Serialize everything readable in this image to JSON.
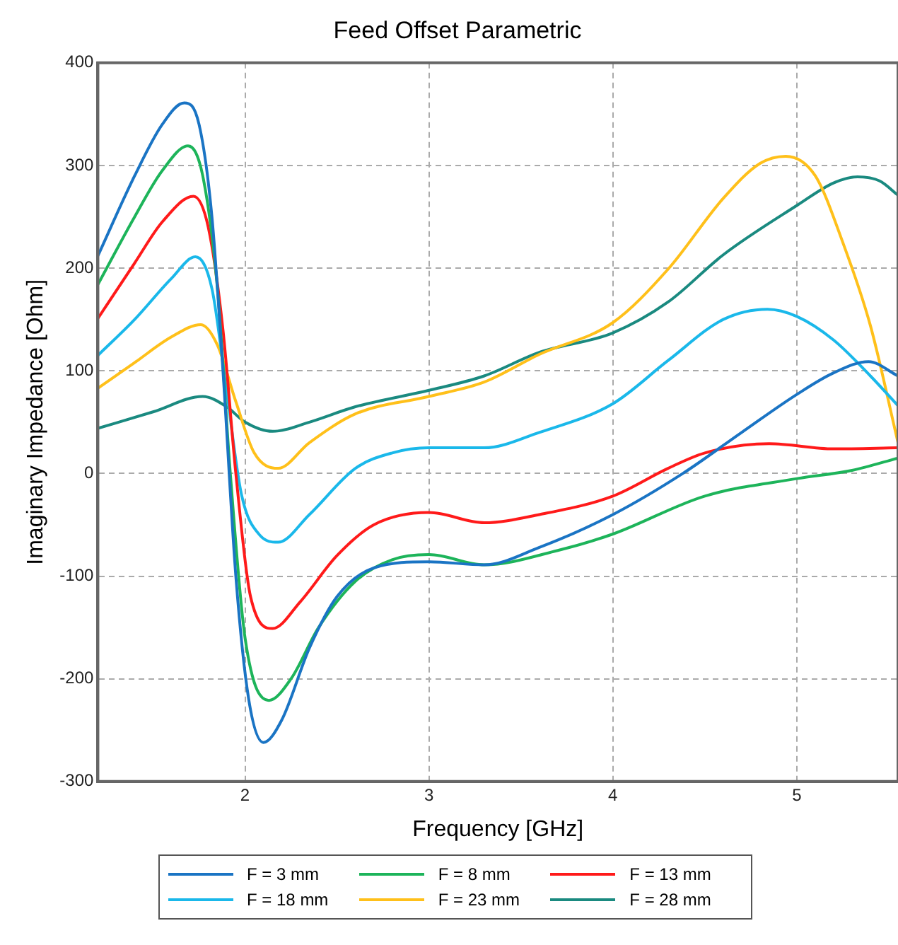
{
  "chart_data": {
    "type": "line",
    "title": "Feed Offset Parametric",
    "xlabel": "Frequency [GHz]",
    "ylabel": "Imaginary Impedance [Ohm]",
    "xlim": [
      1.2,
      5.55
    ],
    "xticks": [
      2,
      3,
      4,
      5
    ],
    "ylim": [
      -300,
      400
    ],
    "yticks": [
      -300,
      -200,
      -100,
      0,
      100,
      200,
      300,
      400
    ],
    "grid": true,
    "legend": "bottom",
    "marker": "none",
    "line_style": "solid",
    "series": [
      {
        "name": "F = 3 mm",
        "color": "#1a74c4",
        "x": [
          1.2,
          1.4,
          1.55,
          1.67,
          1.75,
          1.82,
          1.88,
          1.95,
          2.02,
          2.1,
          2.2,
          2.35,
          2.5,
          2.7,
          3.0,
          3.3,
          3.6,
          4.0,
          4.38,
          4.7,
          5.0,
          5.2,
          5.39,
          5.55
        ],
        "values": [
          212,
          290,
          340,
          361,
          340,
          250,
          100,
          -100,
          -220,
          -262,
          -240,
          -170,
          -120,
          -92,
          -86,
          -89,
          -72,
          -40,
          0,
          40,
          77,
          98,
          109,
          95
        ]
      },
      {
        "name": "F = 8 mm",
        "color": "#1db45a",
        "x": [
          1.2,
          1.4,
          1.55,
          1.69,
          1.77,
          1.85,
          1.92,
          2.0,
          2.13,
          2.25,
          2.4,
          2.6,
          2.8,
          3.0,
          3.3,
          3.7,
          4.0,
          4.5,
          5.0,
          5.3,
          5.55
        ],
        "values": [
          184,
          250,
          295,
          319,
          290,
          180,
          0,
          -160,
          -221,
          -200,
          -150,
          -105,
          -84,
          -79,
          -89,
          -75,
          -59,
          -22,
          -5,
          3,
          15
        ]
      },
      {
        "name": "F = 13 mm",
        "color": "#ff1a1a",
        "x": [
          1.2,
          1.4,
          1.55,
          1.72,
          1.8,
          1.88,
          1.95,
          2.03,
          2.15,
          2.3,
          2.5,
          2.7,
          3.0,
          3.3,
          3.6,
          4.0,
          4.3,
          4.5,
          4.85,
          5.2,
          5.55
        ],
        "values": [
          151,
          205,
          245,
          270,
          240,
          140,
          0,
          -120,
          -151,
          -125,
          -80,
          -50,
          -38,
          -48,
          -40,
          -22,
          5,
          20,
          29,
          24,
          25
        ]
      },
      {
        "name": "F = 18 mm",
        "color": "#1ab8ea",
        "x": [
          1.2,
          1.4,
          1.6,
          1.73,
          1.82,
          1.9,
          1.98,
          2.08,
          2.18,
          2.35,
          2.6,
          2.8,
          3.0,
          3.3,
          3.6,
          4.0,
          4.3,
          4.6,
          4.84,
          5.0,
          5.2,
          5.4,
          5.55
        ],
        "values": [
          115,
          150,
          190,
          211,
          180,
          80,
          -20,
          -60,
          -67,
          -40,
          5,
          20,
          25,
          25,
          40,
          68,
          110,
          150,
          160,
          153,
          130,
          95,
          66
        ]
      },
      {
        "name": "F = 23 mm",
        "color": "#ffc01a",
        "x": [
          1.2,
          1.4,
          1.6,
          1.76,
          1.85,
          1.95,
          2.05,
          2.18,
          2.35,
          2.6,
          3.0,
          3.3,
          3.6,
          4.0,
          4.3,
          4.6,
          4.8,
          4.94,
          5.1,
          5.25,
          5.4,
          5.55
        ],
        "values": [
          83,
          108,
          133,
          145,
          125,
          70,
          20,
          5,
          30,
          58,
          75,
          89,
          116,
          147,
          199,
          268,
          302,
          309,
          290,
          225,
          144,
          30
        ]
      },
      {
        "name": "F = 28 mm",
        "color": "#1a8a80",
        "x": [
          1.2,
          1.5,
          1.77,
          1.9,
          2.0,
          2.15,
          2.35,
          2.6,
          3.0,
          3.3,
          3.6,
          4.0,
          4.3,
          4.6,
          5.0,
          5.2,
          5.33,
          5.45,
          5.55
        ],
        "values": [
          44,
          60,
          75,
          65,
          50,
          41,
          50,
          65,
          81,
          95,
          118,
          137,
          167,
          213,
          261,
          283,
          289,
          285,
          271
        ]
      }
    ]
  }
}
